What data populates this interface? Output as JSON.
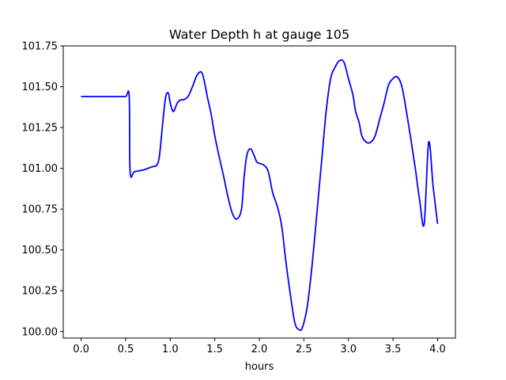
{
  "chart_data": {
    "type": "line",
    "title": "Water Depth h at gauge 105",
    "xlabel": "hours",
    "ylabel": "",
    "xlim": [
      -0.2,
      4.2
    ],
    "ylim": [
      99.96,
      101.75
    ],
    "xticks": [
      0.0,
      0.5,
      1.0,
      1.5,
      2.0,
      2.5,
      3.0,
      3.5,
      4.0
    ],
    "xtick_labels": [
      "0.0",
      "0.5",
      "1.0",
      "1.5",
      "2.0",
      "2.5",
      "3.0",
      "3.5",
      "4.0"
    ],
    "yticks": [
      100.0,
      100.25,
      100.5,
      100.75,
      101.0,
      101.25,
      101.5,
      101.75
    ],
    "ytick_labels": [
      "100.00",
      "100.25",
      "100.50",
      "100.75",
      "101.00",
      "101.25",
      "101.50",
      "101.75"
    ],
    "grid": false,
    "series": [
      {
        "color": "#0000ff",
        "x": [
          0.0,
          0.1,
          0.2,
          0.3,
          0.4,
          0.5,
          0.54,
          0.55,
          0.6,
          0.7,
          0.75,
          0.8,
          0.85,
          0.88,
          0.92,
          0.95,
          0.98,
          1.0,
          1.03,
          1.05,
          1.08,
          1.12,
          1.15,
          1.2,
          1.25,
          1.3,
          1.35,
          1.38,
          1.42,
          1.46,
          1.5,
          1.55,
          1.6,
          1.65,
          1.7,
          1.75,
          1.8,
          1.83,
          1.86,
          1.9,
          1.94,
          1.97,
          2.0,
          2.05,
          2.1,
          2.15,
          2.2,
          2.25,
          2.3,
          2.35,
          2.4,
          2.45,
          2.48,
          2.52,
          2.55,
          2.6,
          2.65,
          2.7,
          2.75,
          2.8,
          2.85,
          2.9,
          2.95,
          3.0,
          3.05,
          3.08,
          3.12,
          3.15,
          3.2,
          3.25,
          3.3,
          3.35,
          3.4,
          3.45,
          3.5,
          3.55,
          3.6,
          3.65,
          3.7,
          3.75,
          3.8,
          3.85,
          3.9,
          3.95,
          4.0
        ],
        "y": [
          101.44,
          101.44,
          101.44,
          101.44,
          101.44,
          101.44,
          101.44,
          100.98,
          100.98,
          100.99,
          101.0,
          101.01,
          101.02,
          101.08,
          101.3,
          101.44,
          101.46,
          101.4,
          101.35,
          101.36,
          101.4,
          101.42,
          101.42,
          101.44,
          101.5,
          101.57,
          101.59,
          101.54,
          101.43,
          101.33,
          101.2,
          101.07,
          100.95,
          100.82,
          100.72,
          100.69,
          100.75,
          100.95,
          101.08,
          101.12,
          101.08,
          101.04,
          101.03,
          101.02,
          100.98,
          100.85,
          100.77,
          100.65,
          100.42,
          100.22,
          100.05,
          100.01,
          100.02,
          100.1,
          100.2,
          100.45,
          100.75,
          101.05,
          101.35,
          101.55,
          101.62,
          101.66,
          101.65,
          101.55,
          101.45,
          101.35,
          101.28,
          101.2,
          101.16,
          101.16,
          101.2,
          101.3,
          101.4,
          101.51,
          101.55,
          101.56,
          101.5,
          101.35,
          101.18,
          101.0,
          100.8,
          100.66,
          101.16,
          100.89,
          100.66
        ]
      }
    ]
  }
}
